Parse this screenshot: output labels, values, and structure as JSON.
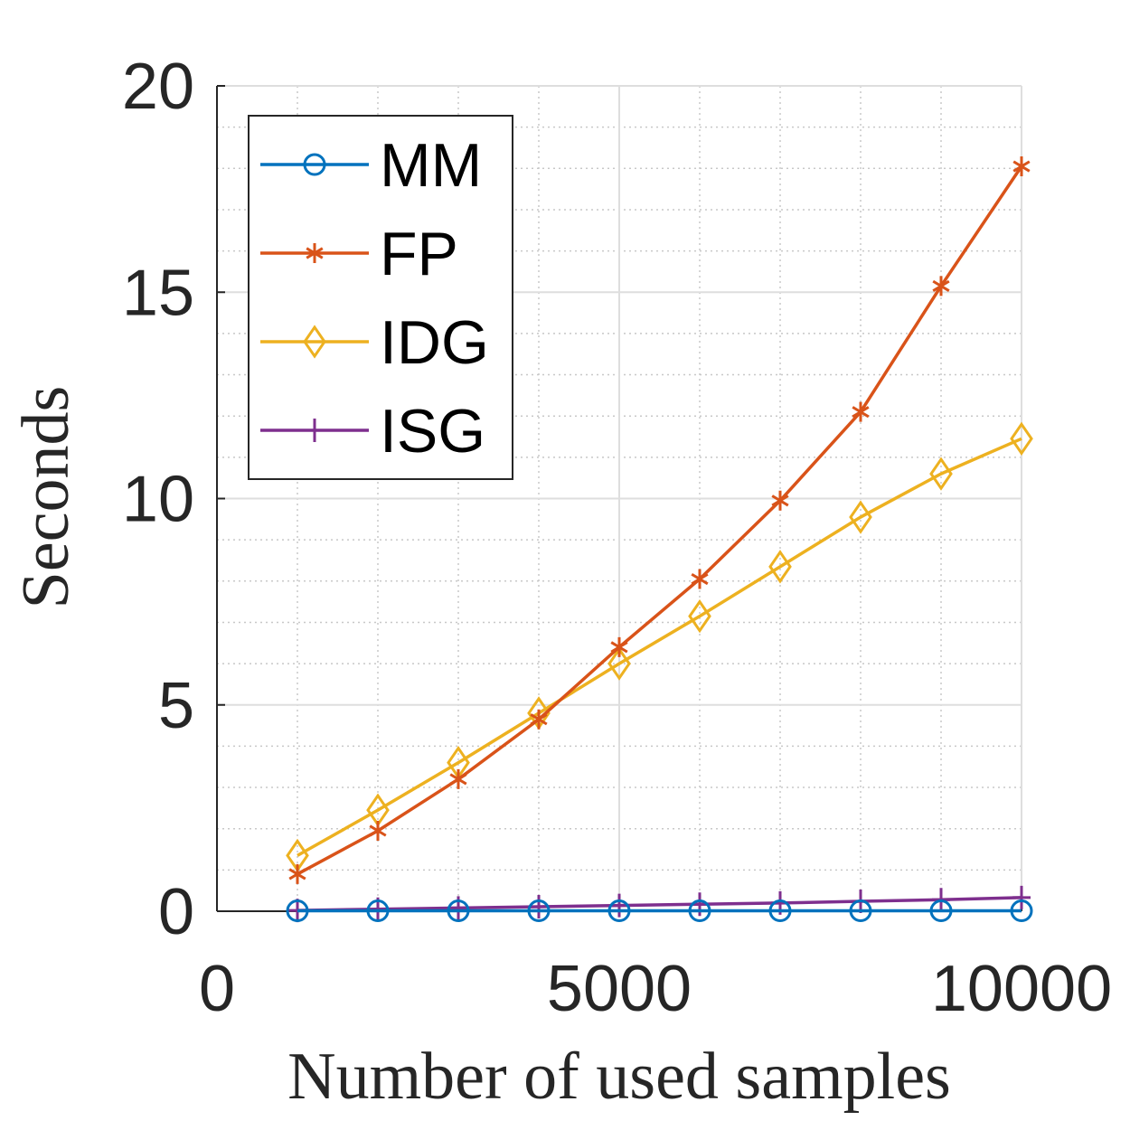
{
  "chart_data": {
    "type": "line",
    "title": "",
    "xlabel": "Number of used samples",
    "ylabel": "Seconds",
    "xlim": [
      0,
      10000
    ],
    "ylim": [
      0,
      20
    ],
    "xticks": [
      0,
      5000,
      10000
    ],
    "xtick_labels": [
      "0",
      "5000",
      "10000"
    ],
    "yticks": [
      0,
      5,
      10,
      15,
      20
    ],
    "ytick_labels": [
      "0",
      "5",
      "10",
      "15",
      "20"
    ],
    "grid": true,
    "minor_grid": true,
    "legend_position": "top-left",
    "x": [
      1000,
      2000,
      3000,
      4000,
      5000,
      6000,
      7000,
      8000,
      9000,
      10000
    ],
    "series": [
      {
        "name": "MM",
        "color": "#0072BD",
        "marker": "circle",
        "values": [
          0.01,
          0.01,
          0.01,
          0.01,
          0.01,
          0.01,
          0.01,
          0.01,
          0.01,
          0.01
        ]
      },
      {
        "name": "FP",
        "color": "#D95319",
        "marker": "asterisk",
        "values": [
          0.9,
          1.95,
          3.2,
          4.65,
          6.4,
          8.05,
          9.95,
          12.1,
          15.15,
          18.05
        ]
      },
      {
        "name": "IDG",
        "color": "#EDB120",
        "marker": "diamond",
        "values": [
          1.35,
          2.45,
          3.6,
          4.8,
          6.0,
          7.15,
          8.35,
          9.55,
          10.6,
          11.45
        ]
      },
      {
        "name": "ISG",
        "color": "#7E2F8E",
        "marker": "plus",
        "values": [
          0.02,
          0.05,
          0.08,
          0.11,
          0.14,
          0.17,
          0.2,
          0.24,
          0.28,
          0.33
        ]
      }
    ]
  }
}
